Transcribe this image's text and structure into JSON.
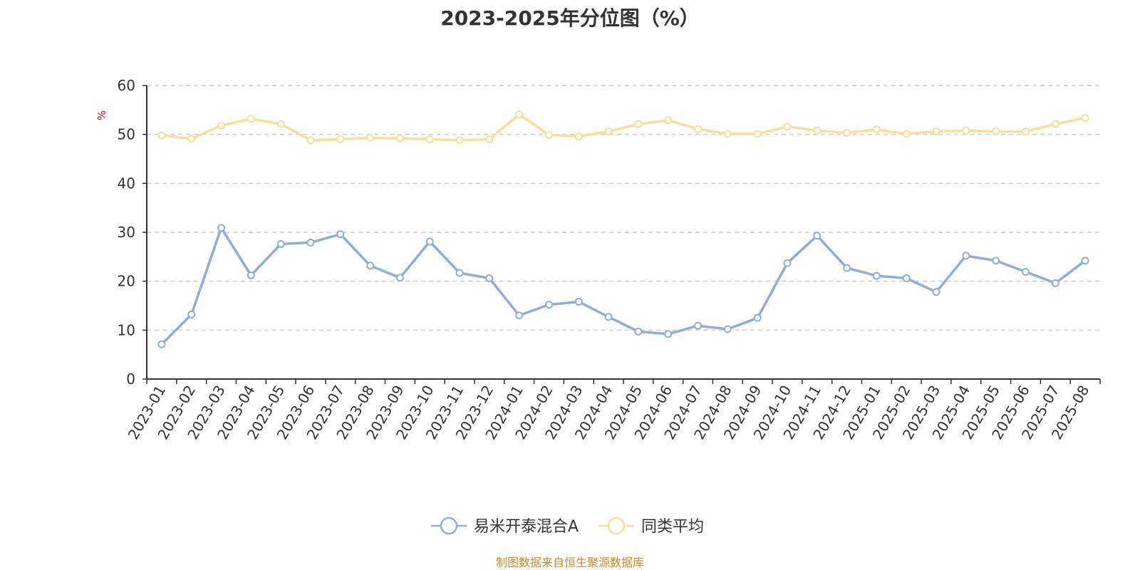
{
  "chart_data": {
    "type": "line",
    "title": "2023-2025年分位图（%）",
    "ylabel": "%",
    "ylim": [
      0,
      60
    ],
    "yticks": [
      0,
      10,
      20,
      30,
      40,
      50,
      60
    ],
    "grid": true,
    "legend_position": "bottom-center",
    "categories": [
      "2023-01",
      "2023-02",
      "2023-03",
      "2023-04",
      "2023-05",
      "2023-06",
      "2023-07",
      "2023-08",
      "2023-09",
      "2023-10",
      "2023-11",
      "2023-12",
      "2024-01",
      "2024-02",
      "2024-03",
      "2024-04",
      "2024-05",
      "2024-06",
      "2024-07",
      "2024-08",
      "2024-09",
      "2024-10",
      "2024-11",
      "2024-12",
      "2025-01",
      "2025-02",
      "2025-03",
      "2025-04",
      "2025-05",
      "2025-06",
      "2025-07",
      "2025-08"
    ],
    "series": [
      {
        "name": "易米开泰混合A",
        "color": "#8eadd8",
        "values": [
          7.1,
          13.2,
          30.9,
          21.2,
          27.6,
          27.9,
          29.6,
          23.2,
          20.7,
          28.1,
          21.7,
          20.6,
          13.0,
          15.2,
          15.8,
          12.7,
          9.7,
          9.2,
          10.9,
          10.2,
          12.5,
          23.7,
          29.3,
          22.7,
          21.1,
          20.6,
          17.8,
          25.2,
          24.2,
          21.9,
          19.6,
          24.2
        ]
      },
      {
        "name": "同类平均",
        "color": "#fddc9b",
        "values": [
          49.8,
          49.1,
          51.8,
          53.2,
          52.1,
          48.8,
          49.0,
          49.3,
          49.2,
          49.0,
          48.8,
          49.0,
          54.1,
          49.9,
          49.6,
          50.6,
          52.1,
          52.9,
          51.1,
          50.1,
          50.1,
          51.6,
          50.8,
          50.3,
          51.0,
          50.1,
          50.6,
          50.8,
          50.6,
          50.6,
          52.1,
          53.4
        ]
      }
    ]
  },
  "source_note": "制图数据来自恒生聚源数据库",
  "colors": {
    "axis": "#333333",
    "grid": "#cccccc",
    "unit_label": "#ff0000",
    "source_note": "#c9892a"
  }
}
